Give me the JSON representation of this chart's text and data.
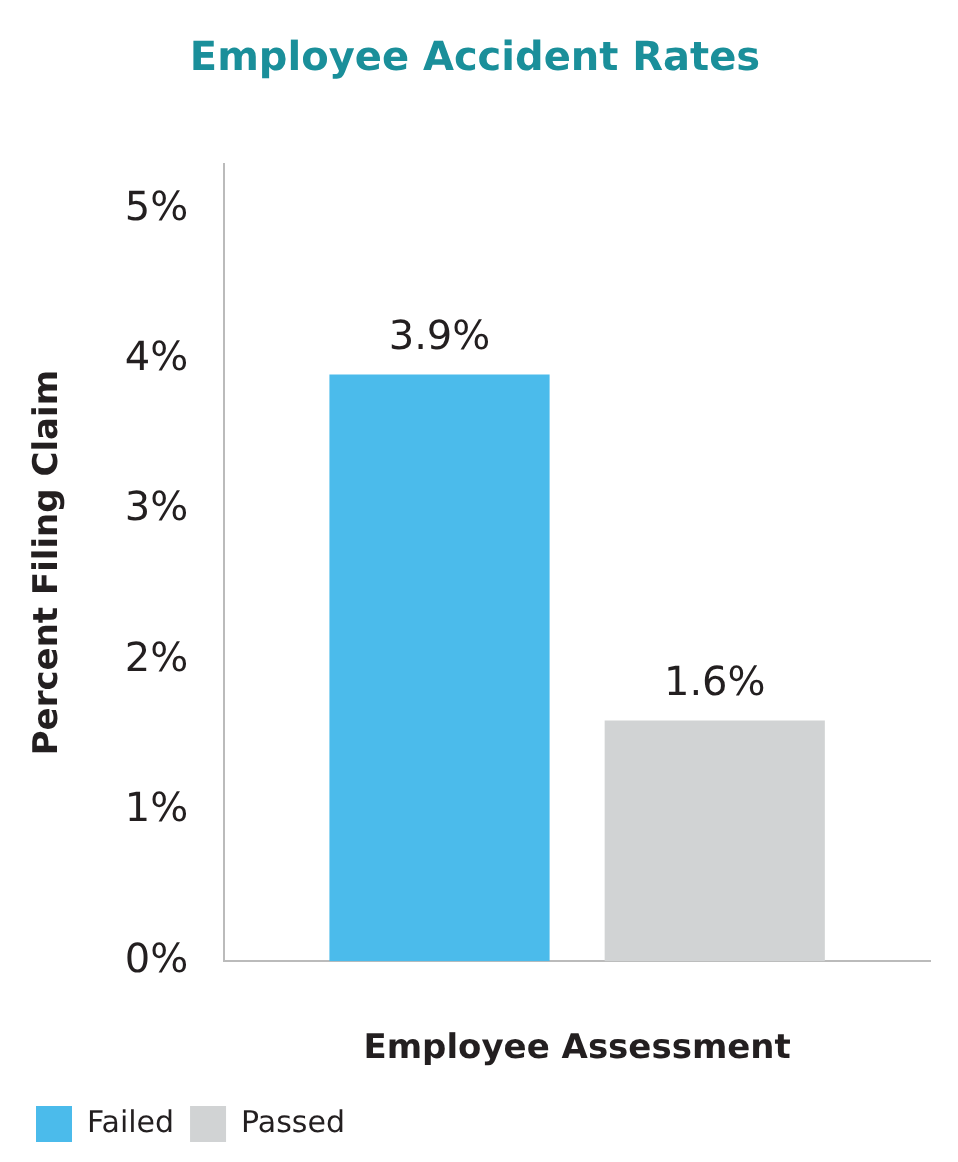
{
  "chart_data": {
    "type": "bar",
    "title": "Employee Accident Rates",
    "xlabel": "Employee Assessment",
    "ylabel": "Percent Filing Claim",
    "categories": [
      null
    ],
    "series": [
      {
        "name": "Failed",
        "color": "#4bbbeb",
        "values": [
          3.9
        ],
        "value_labels": [
          "3.9%"
        ]
      },
      {
        "name": "Passed",
        "color": "#d1d3d4",
        "values": [
          1.6
        ],
        "value_labels": [
          "1.6%"
        ]
      }
    ],
    "ylim": [
      0,
      5.3
    ],
    "yticks": [
      {
        "value": 0,
        "label": "0%"
      },
      {
        "value": 1,
        "label": "1%"
      },
      {
        "value": 2,
        "label": "2%"
      },
      {
        "value": 3,
        "label": "3%"
      },
      {
        "value": 4,
        "label": "4%"
      },
      {
        "value": 5,
        "label": "5%"
      }
    ],
    "grid": false,
    "legend": "bottom left"
  }
}
